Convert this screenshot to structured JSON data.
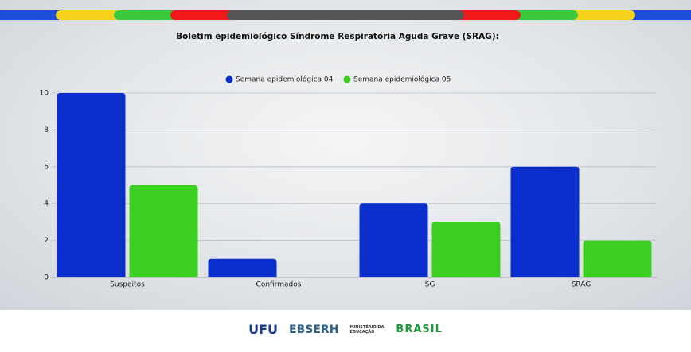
{
  "chart_data": {
    "type": "bar",
    "title": "Boletim epidemiológico Síndrome Respiratória Aguda Grave (SRAG):",
    "categories": [
      "Suspeitos",
      "Confirmados",
      "SG",
      "SRAG"
    ],
    "series": [
      {
        "name": "Semana epidemiológica 04",
        "color": "#0a2fcc",
        "values": [
          10,
          1,
          4,
          6
        ]
      },
      {
        "name": "Semana epidemiológica 05",
        "color": "#3ccf22",
        "values": [
          5,
          0,
          3,
          2
        ]
      }
    ],
    "ylim": [
      0,
      10
    ],
    "yticks": [
      0,
      2,
      4,
      6,
      8,
      10
    ],
    "grid": true,
    "legend": "top"
  },
  "footer": [
    "UFU",
    "EBSERH",
    "MINISTÉRIO DA EDUCAÇÃO",
    "BRASIL"
  ]
}
